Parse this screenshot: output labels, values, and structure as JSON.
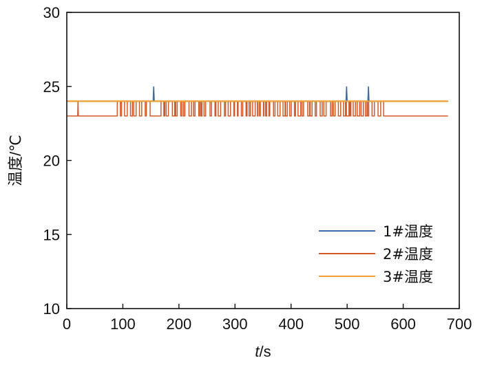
{
  "chart_data": {
    "type": "line",
    "title": "",
    "xlabel_italic": "t",
    "xlabel_rest": "/s",
    "ylabel": "温度/℃",
    "xlim": [
      0,
      700
    ],
    "ylim": [
      10,
      30
    ],
    "xticks": [
      0,
      100,
      200,
      300,
      400,
      500,
      600,
      700
    ],
    "yticks": [
      10,
      15,
      20,
      25,
      30
    ],
    "xtick_labels": [
      "0",
      "100",
      "200",
      "300",
      "400",
      "500",
      "600",
      "700"
    ],
    "ytick_labels": [
      "10",
      "15",
      "20",
      "25",
      "30"
    ],
    "grid": false,
    "legend_position": "bottom-right",
    "series": [
      {
        "name": "1#温度",
        "color": "#3a6ea5",
        "baseline": 24,
        "spikes": [
          [
            155,
            25
          ],
          [
            499,
            25
          ],
          [
            538,
            25
          ]
        ],
        "x_range": [
          0,
          680
        ]
      },
      {
        "name": "2#温度",
        "color": "#d05a2a",
        "low": 23,
        "high": 24,
        "x_range": [
          0,
          680
        ],
        "early_spike": [
          20,
          24
        ],
        "oscillation_ranges": [
          [
            90,
            150
          ],
          [
            168,
            568
          ]
        ]
      },
      {
        "name": "3#温度",
        "color": "#f0a030",
        "baseline": 24,
        "x_range": [
          0,
          680
        ]
      }
    ]
  }
}
